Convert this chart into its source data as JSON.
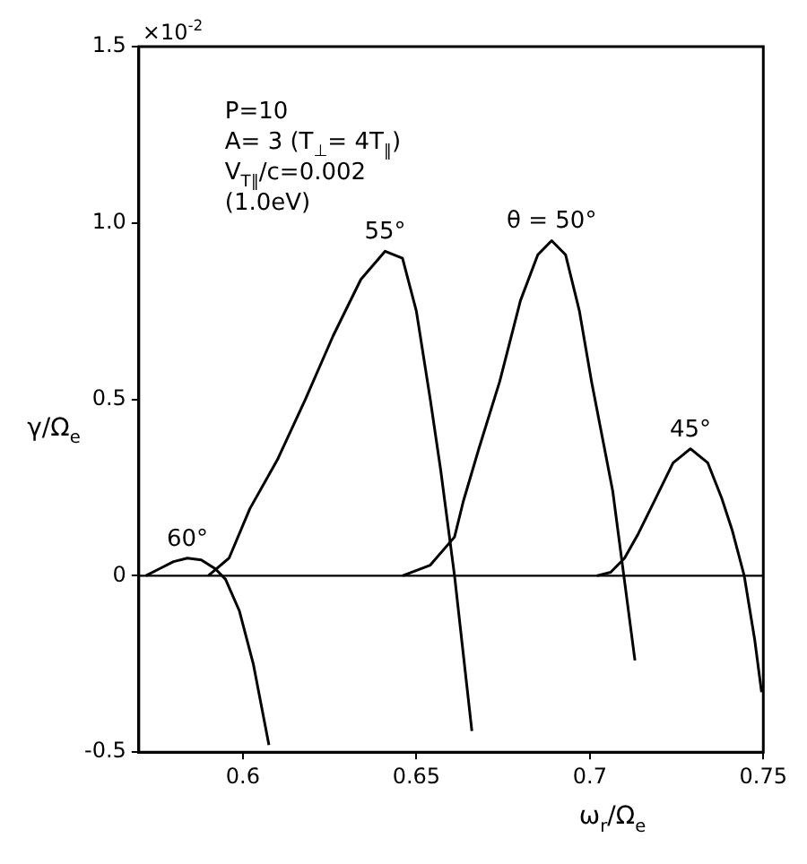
{
  "chart_data": {
    "type": "line",
    "xlabel": "ω$_{r}$/Ω$_{e}$",
    "ylabel": "γ/Ω$_{e}$",
    "xlim": [
      0.57,
      0.75
    ],
    "xticks": [
      0.6,
      0.65,
      0.7,
      0.75
    ],
    "ylim": [
      -0.5,
      1.5
    ],
    "yticks": [
      {
        "value": -0.5,
        "label": "-0.5"
      },
      {
        "value": 0,
        "label": "0"
      },
      {
        "value": 0.5,
        "label": "0.5"
      },
      {
        "value": 1.0,
        "label": "1.0"
      },
      {
        "value": 1.5,
        "label": "1.5"
      }
    ],
    "grid": false,
    "legend": false,
    "marker": "none",
    "line_style": "solid",
    "ref_lines": [
      {
        "axis": "y",
        "value": 0,
        "color": "#000000"
      }
    ],
    "annotations": [
      "×10$^{-2}$",
      "P=10",
      "A= 3 (T$_{⊥}$= 4T$_{∥}$)",
      "V$_{T∥}$/c=0.002",
      "(1.0eV)"
    ],
    "series": [
      {
        "name": "60°",
        "color": "#000000",
        "x": [
          0.572,
          0.576,
          0.58,
          0.584,
          0.588,
          0.592,
          0.595,
          0.599,
          0.603,
          0.6075
        ],
        "values": [
          0,
          0.02,
          0.04,
          0.05,
          0.045,
          0.02,
          -0.01,
          -0.1,
          -0.25,
          -0.48
        ]
      },
      {
        "name": "55°",
        "color": "#000000",
        "x": [
          0.59,
          0.596,
          0.602,
          0.61,
          0.618,
          0.626,
          0.634,
          0.641,
          0.646,
          0.65,
          0.654,
          0.657,
          0.661,
          0.666
        ],
        "values": [
          0,
          0.05,
          0.19,
          0.33,
          0.5,
          0.68,
          0.84,
          0.92,
          0.9,
          0.75,
          0.5,
          0.3,
          0,
          -0.44
        ]
      },
      {
        "name": "θ = 50°",
        "color": "#000000",
        "x": [
          0.646,
          0.654,
          0.661,
          0.6635,
          0.668,
          0.674,
          0.68,
          0.685,
          0.689,
          0.693,
          0.697,
          0.7005,
          0.7066,
          0.7098,
          0.713
        ],
        "values": [
          0,
          0.03,
          0.11,
          0.21,
          0.36,
          0.55,
          0.78,
          0.91,
          0.95,
          0.91,
          0.75,
          0.55,
          0.24,
          0,
          -0.24
        ]
      },
      {
        "name": "45°",
        "color": "#000000",
        "x": [
          0.702,
          0.706,
          0.71,
          0.714,
          0.719,
          0.724,
          0.729,
          0.734,
          0.738,
          0.741,
          0.7445,
          0.7475,
          0.7495
        ],
        "values": [
          0,
          0.01,
          0.05,
          0.12,
          0.22,
          0.32,
          0.36,
          0.32,
          0.22,
          0.13,
          0,
          -0.18,
          -0.33
        ]
      }
    ]
  }
}
